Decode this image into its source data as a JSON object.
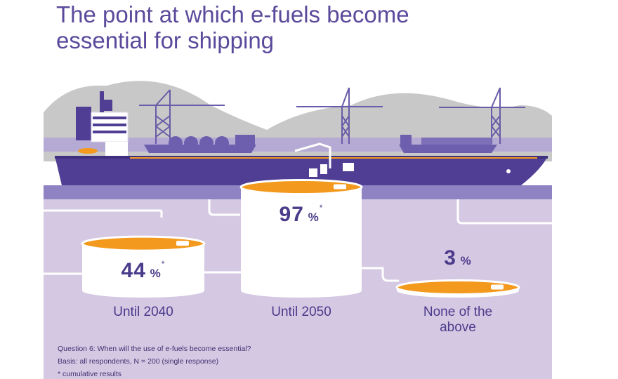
{
  "header": {
    "title_line1": "The point at which e-fuels become",
    "title_line2": "essential for shipping"
  },
  "colors": {
    "title": "#5b4a9b",
    "ship_hull": "#4f3e94",
    "tank_fill": "#f39a1e",
    "tank_body": "#ffffff",
    "ground": "#d5c8e3",
    "water": "#8f83c3",
    "hills": "#c8c8c8"
  },
  "chart_data": {
    "type": "bar",
    "categories": [
      "Until 2040",
      "Until 2050",
      "None of the above"
    ],
    "category_lines": [
      [
        "Until 2040"
      ],
      [
        "Until 2050"
      ],
      [
        "None of the",
        "above"
      ]
    ],
    "values": [
      44,
      97,
      3
    ],
    "value_unit": "%",
    "asterisk": [
      true,
      true,
      false
    ],
    "title": "The point at which e-fuels become essential for shipping",
    "xlabel": "",
    "ylabel": "",
    "ylim": [
      0,
      100
    ],
    "notes": [
      "Question 6: When will the use of e-fuels become essential?",
      "Basis: all respondents, N = 200 (single response)",
      "* cumulative results"
    ]
  }
}
